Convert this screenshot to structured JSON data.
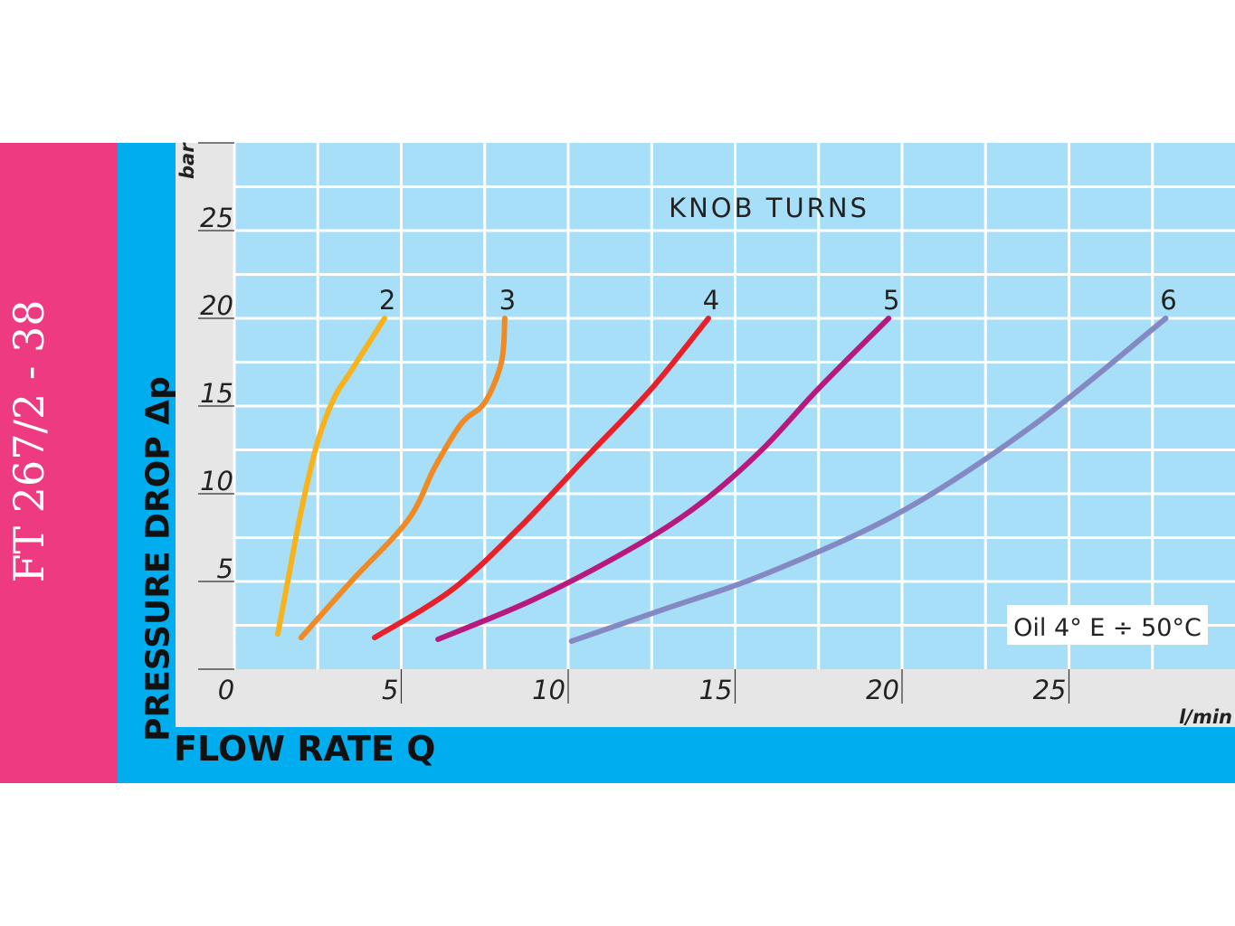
{
  "product_code": "FT 267/2 - 38",
  "chart_data": {
    "type": "line",
    "title": "KNOB TURNS",
    "xlabel": "FLOW RATE Q",
    "ylabel": "PRESSURE DROP Δp",
    "x_unit": "l/min",
    "y_unit": "bar",
    "xlim": [
      0,
      30
    ],
    "ylim": [
      0,
      30
    ],
    "x_ticks": [
      "0",
      "5",
      "10",
      "15",
      "20",
      "25"
    ],
    "y_ticks": [
      "5",
      "10",
      "15",
      "20",
      "25"
    ],
    "grid": true,
    "annotation": "Oil 4° E ÷ 50°C",
    "series": [
      {
        "name": "2",
        "color": "#f7b21c",
        "x": [
          1.3,
          1.6,
          2.0,
          2.5,
          3.0,
          3.5,
          4.5
        ],
        "y": [
          2,
          5,
          9,
          13,
          15.5,
          17,
          20
        ]
      },
      {
        "name": "3",
        "color": "#f08a24",
        "x": [
          2.0,
          3.5,
          5.2,
          6.0,
          6.8,
          7.5,
          8.0,
          8.1
        ],
        "y": [
          1.8,
          5,
          8.5,
          11.5,
          14,
          15.2,
          17.5,
          20
        ]
      },
      {
        "name": "4",
        "color": "#e8202a",
        "x": [
          4.2,
          6.5,
          8.5,
          10.5,
          12.5,
          14.2
        ],
        "y": [
          1.8,
          4.5,
          8,
          12,
          16,
          20
        ]
      },
      {
        "name": "5",
        "color": "#b8197f",
        "x": [
          6.1,
          9.0,
          12.0,
          14.0,
          15.8,
          17.5,
          19.6
        ],
        "y": [
          1.7,
          4,
          7,
          9.5,
          12.5,
          16,
          20
        ]
      },
      {
        "name": "6",
        "color": "#8489c4",
        "x": [
          10.1,
          13.0,
          16.0,
          20.0,
          24.0,
          27.9
        ],
        "y": [
          1.6,
          3.5,
          5.5,
          9,
          14,
          20
        ]
      }
    ]
  }
}
